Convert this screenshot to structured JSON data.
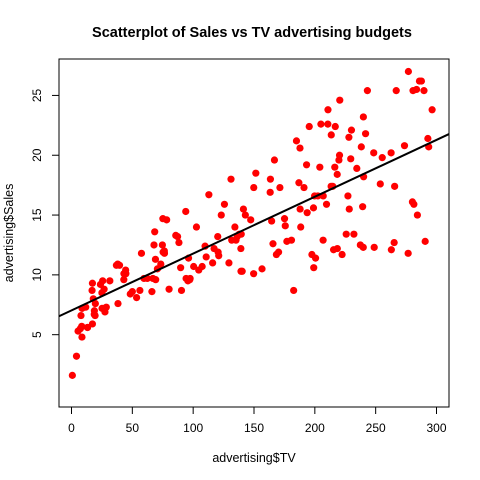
{
  "chart_data": {
    "type": "scatter",
    "title": "Scatterplot of Sales vs TV advertising budgets",
    "xlabel": "advertising$TV",
    "ylabel": "advertising$Sales",
    "xlim": [
      0,
      300
    ],
    "ylim": [
      0,
      27
    ],
    "x_ticks": [
      0,
      50,
      100,
      150,
      200,
      250,
      300
    ],
    "y_ticks": [
      5,
      10,
      15,
      20,
      25
    ],
    "grid": false,
    "legend": "none",
    "point_color": "#ff0000",
    "line_color": "#000000",
    "regression_line": {
      "intercept": 7.03,
      "slope": 0.0475
    },
    "points": [
      [
        0.7,
        1.6
      ],
      [
        4.1,
        3.2
      ],
      [
        5.4,
        5.3
      ],
      [
        7.3,
        5.5
      ],
      [
        7.8,
        6.6
      ],
      [
        8.4,
        5.7
      ],
      [
        8.6,
        4.8
      ],
      [
        8.7,
        7.2
      ],
      [
        11.7,
        7.3
      ],
      [
        13.1,
        5.6
      ],
      [
        13.2,
        5.6
      ],
      [
        16.9,
        8.7
      ],
      [
        17.2,
        9.3
      ],
      [
        17.2,
        5.9
      ],
      [
        17.9,
        8.0
      ],
      [
        18.7,
        6.7
      ],
      [
        18.8,
        7.0
      ],
      [
        19.4,
        6.6
      ],
      [
        19.6,
        7.6
      ],
      [
        23.8,
        9.2
      ],
      [
        25.0,
        8.5
      ],
      [
        25.1,
        7.2
      ],
      [
        25.6,
        9.5
      ],
      [
        26.8,
        8.8
      ],
      [
        27.5,
        6.9
      ],
      [
        28.6,
        7.3
      ],
      [
        31.5,
        9.5
      ],
      [
        36.9,
        10.8
      ],
      [
        38.0,
        10.9
      ],
      [
        38.2,
        7.6
      ],
      [
        39.5,
        10.8
      ],
      [
        43.0,
        9.6
      ],
      [
        43.1,
        10.1
      ],
      [
        44.5,
        10.4
      ],
      [
        44.7,
        10.1
      ],
      [
        48.3,
        8.4
      ],
      [
        50.0,
        8.6
      ],
      [
        53.5,
        8.1
      ],
      [
        56.2,
        8.7
      ],
      [
        57.5,
        11.8
      ],
      [
        59.6,
        9.7
      ],
      [
        62.3,
        9.7
      ],
      [
        66.1,
        8.6
      ],
      [
        66.9,
        9.7
      ],
      [
        67.8,
        12.5
      ],
      [
        68.4,
        13.6
      ],
      [
        69.0,
        11.3
      ],
      [
        69.2,
        9.6
      ],
      [
        70.6,
        10.5
      ],
      [
        73.4,
        10.9
      ],
      [
        74.7,
        12.5
      ],
      [
        75.1,
        14.7
      ],
      [
        75.3,
        11.9
      ],
      [
        76.3,
        12.0
      ],
      [
        76.4,
        11.8
      ],
      [
        78.2,
        14.6
      ],
      [
        80.2,
        8.8
      ],
      [
        85.7,
        13.3
      ],
      [
        87.2,
        13.2
      ],
      [
        88.3,
        12.7
      ],
      [
        89.7,
        10.6
      ],
      [
        90.4,
        8.7
      ],
      [
        93.9,
        15.3
      ],
      [
        94.2,
        9.7
      ],
      [
        95.7,
        9.5
      ],
      [
        96.2,
        11.4
      ],
      [
        97.2,
        9.6
      ],
      [
        97.5,
        9.7
      ],
      [
        100.4,
        10.7
      ],
      [
        102.7,
        14.0
      ],
      [
        104.6,
        10.4
      ],
      [
        107.4,
        10.7
      ],
      [
        109.8,
        12.4
      ],
      [
        110.7,
        11.5
      ],
      [
        112.9,
        16.7
      ],
      [
        116.0,
        11.0
      ],
      [
        117.2,
        12.2
      ],
      [
        120.2,
        13.2
      ],
      [
        120.5,
        11.9
      ],
      [
        121.0,
        11.6
      ],
      [
        123.1,
        15.0
      ],
      [
        125.7,
        15.9
      ],
      [
        129.4,
        11.0
      ],
      [
        131.1,
        18.0
      ],
      [
        131.7,
        12.9
      ],
      [
        134.3,
        14.0
      ],
      [
        135.2,
        12.9
      ],
      [
        136.2,
        13.2
      ],
      [
        137.9,
        13.4
      ],
      [
        139.2,
        12.2
      ],
      [
        139.3,
        10.3
      ],
      [
        139.5,
        13.4
      ],
      [
        140.3,
        10.3
      ],
      [
        141.3,
        15.5
      ],
      [
        142.9,
        15.0
      ],
      [
        147.3,
        14.6
      ],
      [
        149.7,
        10.1
      ],
      [
        149.8,
        17.3
      ],
      [
        151.5,
        18.5
      ],
      [
        156.6,
        10.5
      ],
      [
        163.3,
        16.9
      ],
      [
        163.5,
        18.0
      ],
      [
        164.5,
        14.5
      ],
      [
        165.6,
        12.6
      ],
      [
        166.8,
        19.6
      ],
      [
        168.4,
        11.7
      ],
      [
        170.2,
        11.9
      ],
      [
        171.3,
        17.3
      ],
      [
        175.1,
        14.7
      ],
      [
        175.7,
        14.1
      ],
      [
        177.0,
        12.8
      ],
      [
        180.8,
        12.9
      ],
      [
        182.6,
        8.7
      ],
      [
        184.9,
        21.2
      ],
      [
        186.9,
        17.7
      ],
      [
        187.8,
        20.6
      ],
      [
        187.9,
        15.5
      ],
      [
        188.4,
        14.0
      ],
      [
        191.1,
        17.3
      ],
      [
        193.2,
        19.2
      ],
      [
        193.7,
        15.2
      ],
      [
        195.4,
        22.4
      ],
      [
        197.6,
        11.7
      ],
      [
        198.9,
        15.6
      ],
      [
        199.1,
        10.6
      ],
      [
        199.8,
        16.6
      ],
      [
        200.6,
        11.4
      ],
      [
        202.5,
        16.6
      ],
      [
        204.1,
        19.0
      ],
      [
        205.0,
        22.6
      ],
      [
        206.8,
        12.9
      ],
      [
        206.9,
        16.6
      ],
      [
        209.6,
        15.9
      ],
      [
        210.7,
        22.6
      ],
      [
        210.8,
        23.8
      ],
      [
        213.4,
        17.4
      ],
      [
        213.5,
        21.7
      ],
      [
        214.7,
        17.4
      ],
      [
        215.4,
        12.1
      ],
      [
        216.4,
        19.0
      ],
      [
        216.8,
        22.4
      ],
      [
        218.4,
        18.4
      ],
      [
        218.5,
        12.2
      ],
      [
        219.8,
        19.6
      ],
      [
        220.3,
        20.0
      ],
      [
        220.5,
        24.6
      ],
      [
        222.4,
        11.7
      ],
      [
        225.8,
        13.4
      ],
      [
        227.2,
        16.6
      ],
      [
        228.0,
        21.5
      ],
      [
        228.3,
        15.5
      ],
      [
        229.5,
        19.7
      ],
      [
        230.1,
        22.1
      ],
      [
        232.1,
        13.4
      ],
      [
        234.5,
        18.9
      ],
      [
        237.4,
        12.5
      ],
      [
        238.2,
        20.7
      ],
      [
        239.3,
        15.7
      ],
      [
        239.8,
        12.3
      ],
      [
        239.9,
        23.2
      ],
      [
        240.1,
        18.2
      ],
      [
        241.7,
        21.8
      ],
      [
        243.2,
        25.4
      ],
      [
        248.4,
        20.2
      ],
      [
        248.8,
        12.3
      ],
      [
        253.8,
        17.6
      ],
      [
        255.4,
        19.8
      ],
      [
        262.7,
        20.2
      ],
      [
        262.9,
        12.1
      ],
      [
        265.2,
        12.7
      ],
      [
        265.6,
        17.4
      ],
      [
        266.9,
        25.4
      ],
      [
        273.7,
        20.8
      ],
      [
        276.7,
        11.8
      ],
      [
        276.9,
        27.0
      ],
      [
        280.2,
        16.1
      ],
      [
        280.7,
        25.4
      ],
      [
        281.4,
        15.9
      ],
      [
        283.6,
        25.5
      ],
      [
        284.3,
        15.0
      ],
      [
        286.0,
        26.2
      ],
      [
        287.6,
        26.2
      ],
      [
        289.7,
        25.4
      ],
      [
        290.7,
        12.8
      ],
      [
        292.9,
        21.4
      ],
      [
        293.6,
        20.7
      ],
      [
        296.4,
        23.8
      ]
    ]
  }
}
